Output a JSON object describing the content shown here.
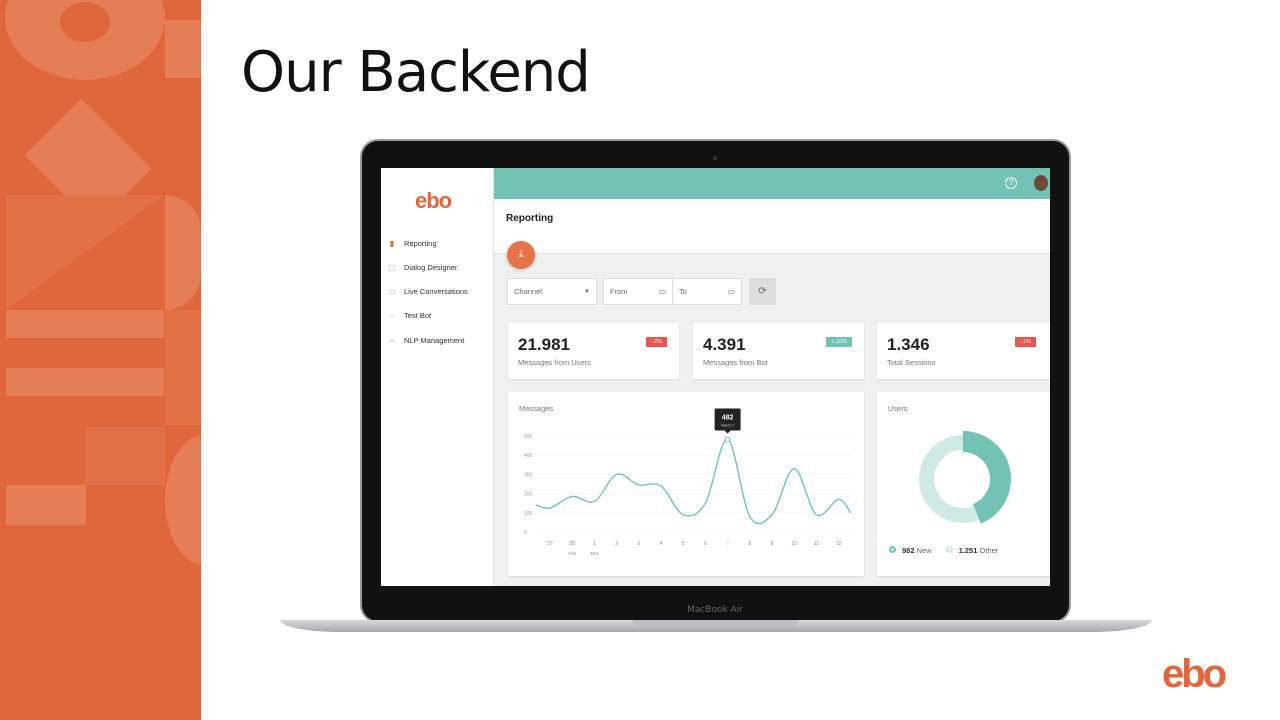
{
  "slide": {
    "title": "Our Backend",
    "laptop_label": "MacBook Air",
    "logo": "ebo",
    "accent": "#e0663c"
  },
  "app": {
    "logo": "ebo",
    "header_color": "#72c3b6",
    "page_title": "Reporting",
    "sidebar": [
      {
        "label": "Reporting",
        "icon": "bar-chart-icon",
        "active": true
      },
      {
        "label": "Dialog Designer",
        "icon": "designer-icon"
      },
      {
        "label": "Live Conversations",
        "icon": "chat-icon"
      },
      {
        "label": "Test Bot",
        "icon": "play-icon"
      },
      {
        "label": "NLP Management",
        "icon": "nlp-icon"
      }
    ],
    "filters": {
      "channel": "Channel",
      "from": "From",
      "to": "To"
    },
    "stats": [
      {
        "value": "21.981",
        "label": "Messages from Users",
        "change": "- 2%",
        "color": "#e05a52"
      },
      {
        "value": "4.391",
        "label": "Messages from Bot",
        "change": "+ 10%",
        "color": "#72c3b6"
      },
      {
        "value": "1.346",
        "label": "Total Sessions",
        "change": "- 1%",
        "color": "#e05a52"
      }
    ],
    "messages_title": "Messages",
    "users_title": "Users",
    "tooltip": {
      "value": "482",
      "date": "March 7"
    },
    "legend": [
      {
        "value": "982",
        "label": "New"
      },
      {
        "value": "1.251",
        "label": "Other"
      }
    ]
  },
  "chart_data": [
    {
      "type": "line",
      "title": "Messages",
      "categories": [
        "27",
        "28",
        "1",
        "2",
        "3",
        "4",
        "5",
        "6",
        "7",
        "8",
        "9",
        "10",
        "11",
        "12"
      ],
      "month_labels": {
        "28": "Feb",
        "1": "Mar"
      },
      "values": [
        125,
        185,
        160,
        300,
        245,
        240,
        90,
        150,
        482,
        80,
        90,
        330,
        90,
        170
      ],
      "yticks": [
        0,
        100,
        200,
        300,
        400,
        500
      ],
      "ylim": [
        0,
        500
      ],
      "grid": true,
      "color": "#72c3b6"
    },
    {
      "type": "pie",
      "title": "Users",
      "donut": true,
      "slices": [
        {
          "name": "New",
          "value": 982,
          "color": "#72c3b6"
        },
        {
          "name": "Other",
          "value": 1251,
          "color": "#cfe9e4"
        }
      ]
    }
  ]
}
